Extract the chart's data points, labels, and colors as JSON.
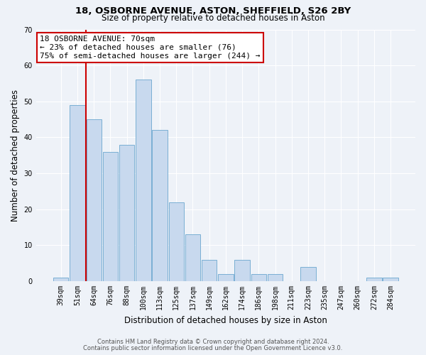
{
  "title": "18, OSBORNE AVENUE, ASTON, SHEFFIELD, S26 2BY",
  "subtitle": "Size of property relative to detached houses in Aston",
  "xlabel": "Distribution of detached houses by size in Aston",
  "ylabel": "Number of detached properties",
  "footnote1": "Contains HM Land Registry data © Crown copyright and database right 2024.",
  "footnote2": "Contains public sector information licensed under the Open Government Licence v3.0.",
  "bar_labels": [
    "39sqm",
    "51sqm",
    "64sqm",
    "76sqm",
    "88sqm",
    "100sqm",
    "113sqm",
    "125sqm",
    "137sqm",
    "149sqm",
    "162sqm",
    "174sqm",
    "186sqm",
    "198sqm",
    "211sqm",
    "223sqm",
    "235sqm",
    "247sqm",
    "260sqm",
    "272sqm",
    "284sqm"
  ],
  "bar_values": [
    1,
    49,
    45,
    36,
    38,
    56,
    42,
    22,
    13,
    6,
    2,
    6,
    2,
    2,
    0,
    4,
    0,
    0,
    0,
    1,
    1
  ],
  "bar_color": "#c8d9ee",
  "bar_edge_color": "#7aafd4",
  "vline_color": "#cc0000",
  "vline_x_idx": 2,
  "annotation_title": "18 OSBORNE AVENUE: 70sqm",
  "annotation_line1": "← 23% of detached houses are smaller (76)",
  "annotation_line2": "75% of semi-detached houses are larger (244) →",
  "annotation_box_facecolor": "#ffffff",
  "annotation_box_edgecolor": "#cc0000",
  "ylim": [
    0,
    70
  ],
  "yticks": [
    0,
    10,
    20,
    30,
    40,
    50,
    60,
    70
  ],
  "figure_facecolor": "#eef2f8",
  "axes_facecolor": "#eef2f8",
  "grid_color": "#ffffff",
  "title_fontsize": 9.5,
  "subtitle_fontsize": 8.5,
  "axis_label_fontsize": 8.5,
  "tick_fontsize": 7,
  "footnote_fontsize": 6,
  "annotation_fontsize": 8
}
